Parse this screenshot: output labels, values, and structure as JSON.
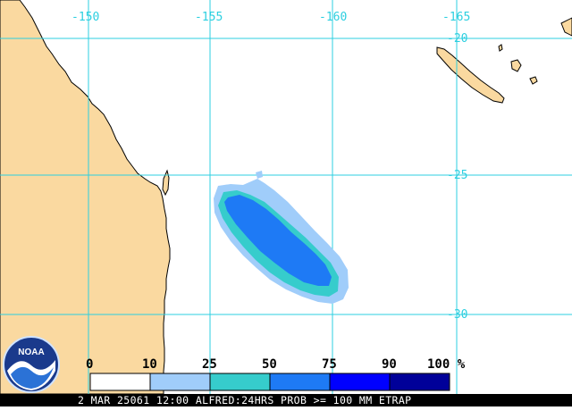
{
  "map": {
    "longitude_labels": [
      "-150",
      "-155",
      "-160",
      "-165"
    ],
    "latitude_labels": [
      "-20",
      "-25",
      "-30"
    ],
    "colors": {
      "land": "#fad9a0",
      "ocean": "#ffffff",
      "graticule": "#2ccfe0",
      "coastline": "#000000"
    }
  },
  "legend": {
    "ticks": [
      "0",
      "10",
      "25",
      "50",
      "75",
      "90",
      "100 %"
    ],
    "bins": [
      {
        "range": "0-10",
        "color": "#ffffff"
      },
      {
        "range": "10-25",
        "color": "#a0cdfa"
      },
      {
        "range": "25-50",
        "color": "#36cccc"
      },
      {
        "range": "50-75",
        "color": "#1e7af5"
      },
      {
        "range": "75-90",
        "color": "#0000ff"
      },
      {
        "range": "90-100",
        "color": "#000099"
      }
    ]
  },
  "logo": {
    "text": "NOAA"
  },
  "caption": "2 MAR 25061 12:00 ALFRED:24HRS PROB >= 100 MM ETRAP"
}
